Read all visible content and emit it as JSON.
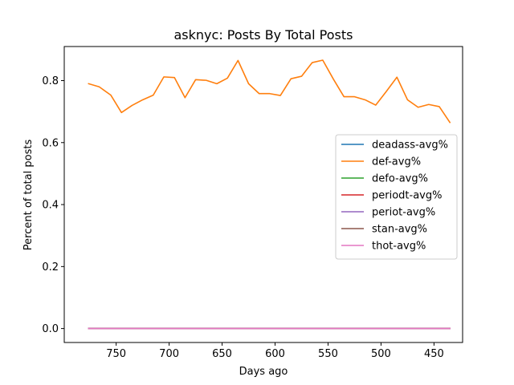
{
  "chart_data": {
    "type": "line",
    "title": "asknyc: Posts By Total Posts",
    "xlabel": "Days ago",
    "ylabel": "Percent of total posts",
    "xlim": [
      799,
      423
    ],
    "ylim": [
      -0.045,
      0.91
    ],
    "x_inverted": true,
    "xticks": [
      750,
      700,
      650,
      600,
      550,
      500,
      450
    ],
    "xtick_labels": [
      "750",
      "700",
      "650",
      "600",
      "550",
      "500",
      "450"
    ],
    "yticks": [
      0.0,
      0.2,
      0.4,
      0.6,
      0.8
    ],
    "ytick_labels": [
      "0.0",
      "0.2",
      "0.4",
      "0.6",
      "0.8"
    ],
    "grid": false,
    "legend_position": "center-right",
    "x": [
      776,
      766,
      755,
      745,
      735,
      725,
      715,
      705,
      695,
      685,
      675,
      665,
      655,
      645,
      635,
      625,
      615,
      605,
      595,
      585,
      575,
      565,
      555,
      545,
      535,
      525,
      515,
      505,
      495,
      485,
      475,
      465,
      455,
      445,
      435
    ],
    "series": [
      {
        "name": "deadass-avg%",
        "color": "#1f77b4",
        "values": [
          0,
          0,
          0,
          0,
          0,
          0,
          0,
          0,
          0,
          0,
          0,
          0,
          0,
          0,
          0,
          0,
          0,
          0,
          0,
          0,
          0,
          0,
          0,
          0,
          0,
          0,
          0,
          0,
          0,
          0,
          0,
          0,
          0,
          0,
          0
        ]
      },
      {
        "name": "def-avg%",
        "color": "#ff7f0e",
        "values": [
          0.79,
          0.78,
          0.753,
          0.697,
          0.72,
          0.738,
          0.753,
          0.812,
          0.81,
          0.745,
          0.803,
          0.801,
          0.79,
          0.808,
          0.865,
          0.79,
          0.758,
          0.758,
          0.752,
          0.806,
          0.814,
          0.858,
          0.866,
          0.805,
          0.748,
          0.748,
          0.738,
          0.721,
          0.765,
          0.811,
          0.738,
          0.714,
          0.723,
          0.716,
          0.665
        ]
      },
      {
        "name": "defo-avg%",
        "color": "#2ca02c",
        "values": [
          0,
          0,
          0,
          0,
          0,
          0,
          0,
          0,
          0,
          0,
          0,
          0,
          0,
          0,
          0,
          0,
          0,
          0,
          0,
          0,
          0,
          0,
          0,
          0,
          0,
          0,
          0,
          0,
          0,
          0,
          0,
          0,
          0,
          0,
          0
        ]
      },
      {
        "name": "periodt-avg%",
        "color": "#d62728",
        "values": [
          0,
          0,
          0,
          0,
          0,
          0,
          0,
          0,
          0,
          0,
          0,
          0,
          0,
          0,
          0,
          0,
          0,
          0,
          0,
          0,
          0,
          0,
          0,
          0,
          0,
          0,
          0,
          0,
          0,
          0,
          0,
          0,
          0,
          0,
          0
        ]
      },
      {
        "name": "periot-avg%",
        "color": "#9467bd",
        "values": [
          0,
          0,
          0,
          0,
          0,
          0,
          0,
          0,
          0,
          0,
          0,
          0,
          0,
          0,
          0,
          0,
          0,
          0,
          0,
          0,
          0,
          0,
          0,
          0,
          0,
          0,
          0,
          0,
          0,
          0,
          0,
          0,
          0,
          0,
          0
        ]
      },
      {
        "name": "stan-avg%",
        "color": "#8c564b",
        "values": [
          0,
          0,
          0,
          0,
          0,
          0,
          0,
          0,
          0,
          0,
          0,
          0,
          0,
          0,
          0,
          0,
          0,
          0,
          0,
          0,
          0,
          0,
          0,
          0,
          0,
          0,
          0,
          0,
          0,
          0,
          0,
          0,
          0,
          0,
          0
        ]
      },
      {
        "name": "thot-avg%",
        "color": "#e377c2",
        "values": [
          0,
          0,
          0,
          0,
          0,
          0,
          0,
          0,
          0,
          0,
          0,
          0,
          0,
          0,
          0,
          0,
          0,
          0,
          0,
          0,
          0,
          0,
          0,
          0,
          0,
          0,
          0,
          0,
          0,
          0,
          0,
          0,
          0,
          0,
          0
        ]
      }
    ]
  }
}
